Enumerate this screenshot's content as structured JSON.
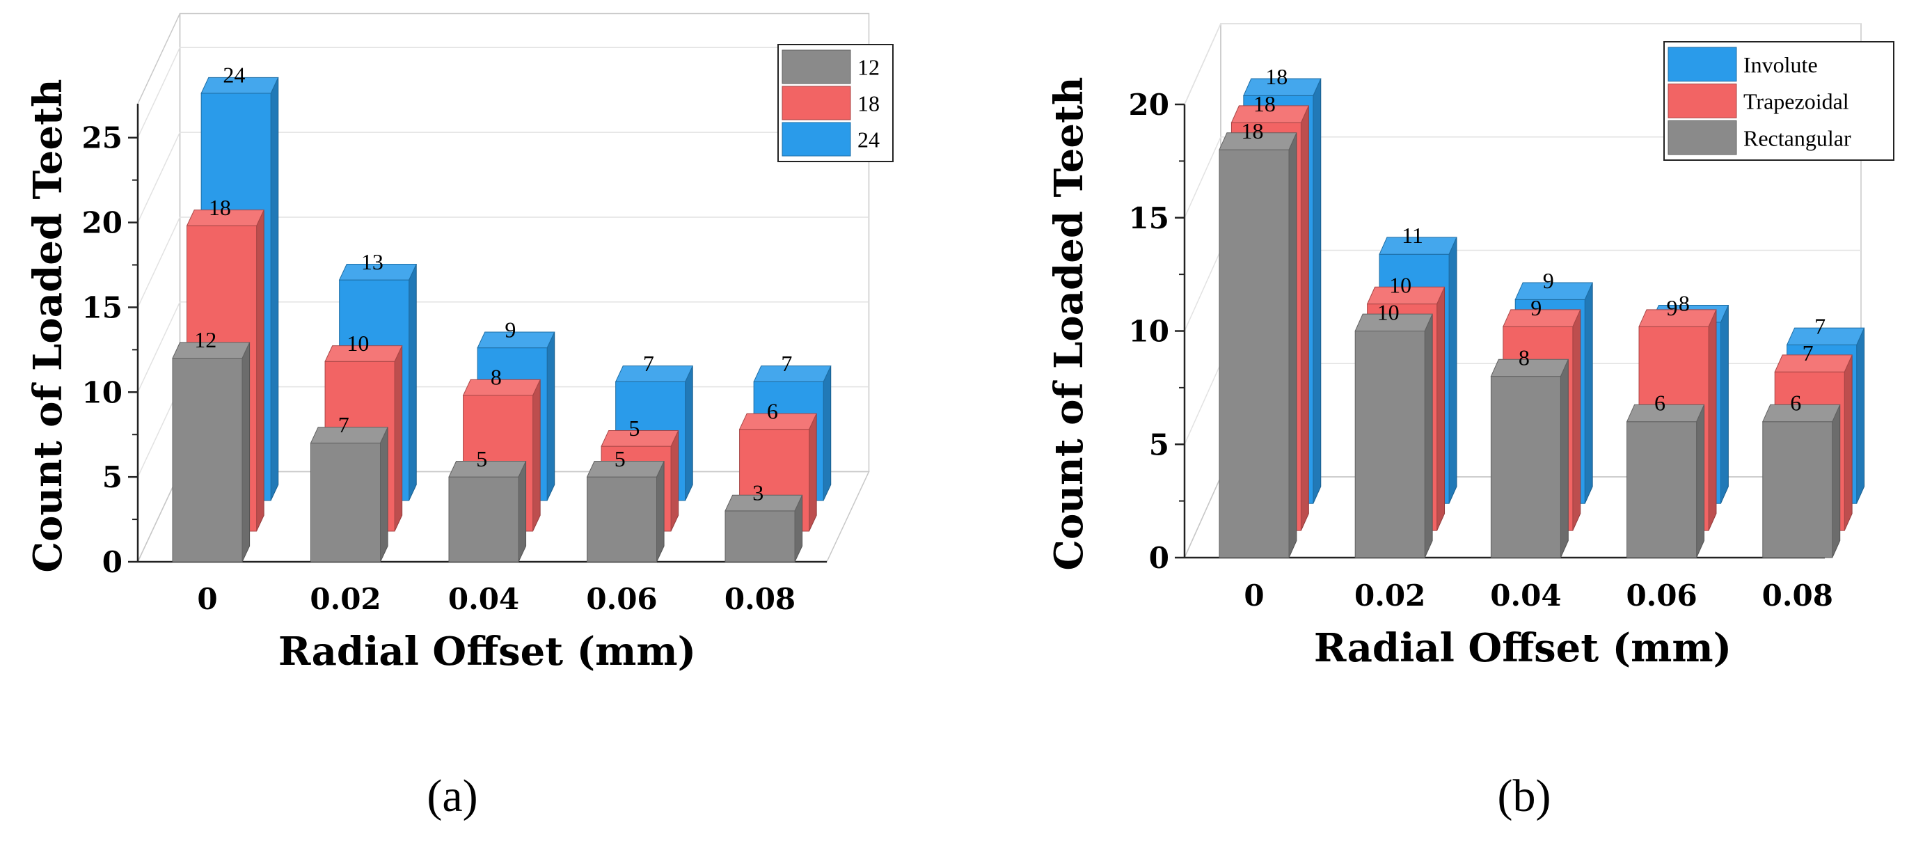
{
  "chart_data": [
    {
      "type": "bar",
      "title": "",
      "panel_label": "(a)",
      "xlabel": "Radial Offset (mm)",
      "ylabel": "Count of Loaded Teeth",
      "categories": [
        "0",
        "0.02",
        "0.04",
        "0.06",
        "0.08"
      ],
      "ylim": [
        0,
        27
      ],
      "yticks": [
        "0",
        "5",
        "10",
        "15",
        "20",
        "25"
      ],
      "grid": true,
      "legend_position": "top-right",
      "series": [
        {
          "name": "12",
          "color": "#8a8a8a",
          "values": [
            12,
            7,
            5,
            5,
            3
          ]
        },
        {
          "name": "18",
          "color": "#f26464",
          "values": [
            18,
            10,
            8,
            5,
            6
          ]
        },
        {
          "name": "24",
          "color": "#2a9bea",
          "values": [
            24,
            13,
            9,
            7,
            7
          ]
        }
      ],
      "legend_order": [
        "12",
        "18",
        "24"
      ]
    },
    {
      "type": "bar",
      "title": "",
      "panel_label": "(b)",
      "xlabel": "Radial Offset (mm)",
      "ylabel": "Count of Loaded Teeth",
      "categories": [
        "0",
        "0.02",
        "0.04",
        "0.06",
        "0.08"
      ],
      "ylim": [
        0,
        20
      ],
      "yticks": [
        "0",
        "5",
        "10",
        "15",
        "20"
      ],
      "grid": true,
      "legend_position": "top-right",
      "series": [
        {
          "name": "Rectangular",
          "color": "#8a8a8a",
          "values": [
            18,
            10,
            8,
            6,
            6
          ]
        },
        {
          "name": "Trapezoidal",
          "color": "#f26464",
          "values": [
            18,
            10,
            9,
            9,
            7
          ]
        },
        {
          "name": "Involute",
          "color": "#2a9bea",
          "values": [
            18,
            11,
            9,
            8,
            7
          ]
        }
      ],
      "legend_order": [
        "Involute",
        "Trapezoidal",
        "Rectangular"
      ]
    }
  ]
}
